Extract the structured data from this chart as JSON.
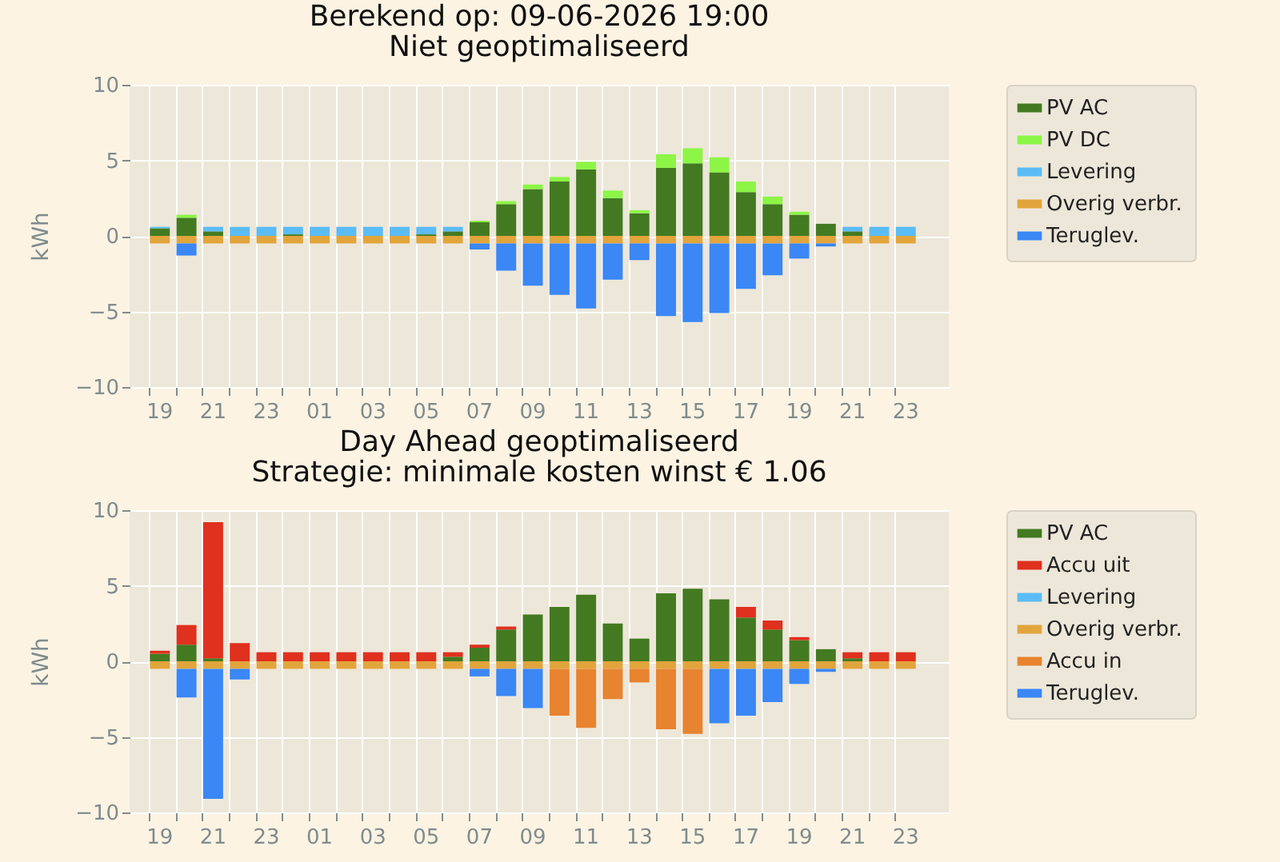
{
  "chart_data": [
    {
      "type": "bar",
      "title": "Berekend op: 09-06-2026 19:00",
      "subtitle": "Niet geoptimaliseerd",
      "ylabel": "kWh",
      "stacked": true,
      "grid": true,
      "legend": "right",
      "categories": [
        "19",
        null,
        "21",
        null,
        "23",
        null,
        "01",
        null,
        "03",
        null,
        "05",
        null,
        "07",
        null,
        "09",
        null,
        "11",
        null,
        "13",
        null,
        "15",
        null,
        "17",
        null,
        "19",
        null,
        "21",
        null,
        "23"
      ],
      "ylim": [
        -10,
        10
      ],
      "yticks": [
        -10,
        -5,
        0,
        5,
        10
      ],
      "series": [
        {
          "name": "PV AC",
          "color": "#437a21",
          "values": [
            0.5,
            1.2,
            0.3,
            0,
            0,
            0.1,
            0,
            0,
            0,
            0,
            0.1,
            0.3,
            0.9,
            2.1,
            3.1,
            3.6,
            4.4,
            2.5,
            1.5,
            4.5,
            4.8,
            4.2,
            2.9,
            2.1,
            1.4,
            0.8,
            0.3,
            0,
            0
          ]
        },
        {
          "name": "PV DC",
          "color": "#8cf545",
          "values": [
            0,
            0.2,
            0,
            0,
            0,
            0,
            0,
            0,
            0,
            0,
            0,
            0,
            0.1,
            0.2,
            0.3,
            0.3,
            0.5,
            0.5,
            0.2,
            0.9,
            1.0,
            1.0,
            0.7,
            0.5,
            0.2,
            0,
            0,
            0,
            0
          ]
        },
        {
          "name": "Levering",
          "color": "#5bbcf5",
          "values": [
            0.1,
            0,
            0.3,
            0.6,
            0.6,
            0.5,
            0.6,
            0.6,
            0.6,
            0.6,
            0.5,
            0.3,
            0,
            0,
            0,
            0,
            0,
            0,
            0,
            0,
            0,
            0,
            0,
            0,
            0,
            0,
            0.3,
            0.6,
            0.6
          ]
        },
        {
          "name": "Overig verbr.",
          "color": "#e2a53c",
          "values": [
            -0.5,
            -0.5,
            -0.5,
            -0.5,
            -0.5,
            -0.5,
            -0.5,
            -0.5,
            -0.5,
            -0.5,
            -0.5,
            -0.5,
            -0.5,
            -0.5,
            -0.5,
            -0.5,
            -0.5,
            -0.5,
            -0.5,
            -0.5,
            -0.5,
            -0.5,
            -0.5,
            -0.5,
            -0.5,
            -0.5,
            -0.5,
            -0.5,
            -0.5
          ]
        },
        {
          "name": "Teruglev.",
          "color": "#3a87f5",
          "values": [
            0,
            -0.8,
            0,
            0,
            0,
            0,
            0,
            0,
            0,
            0,
            0,
            0,
            -0.4,
            -1.8,
            -2.8,
            -3.4,
            -4.3,
            -2.4,
            -1.1,
            -4.8,
            -5.2,
            -4.6,
            -3.0,
            -2.1,
            -1.0,
            -0.2,
            0,
            0,
            0
          ]
        }
      ]
    },
    {
      "type": "bar",
      "title": "Day Ahead geoptimaliseerd",
      "subtitle": "Strategie: minimale kosten winst € 1.06",
      "ylabel": "kWh",
      "stacked": true,
      "grid": true,
      "legend": "right",
      "categories": [
        "19",
        null,
        "21",
        null,
        "23",
        null,
        "01",
        null,
        "03",
        null,
        "05",
        null,
        "07",
        null,
        "09",
        null,
        "11",
        null,
        "13",
        null,
        "15",
        null,
        "17",
        null,
        "19",
        null,
        "21",
        null,
        "23"
      ],
      "ylim": [
        -10,
        10
      ],
      "yticks": [
        -10,
        -5,
        0,
        5,
        10
      ],
      "series": [
        {
          "name": "PV AC",
          "color": "#437a21",
          "values": [
            0.5,
            1.1,
            0.2,
            0,
            0,
            0,
            0,
            0,
            0,
            0,
            0,
            0.3,
            0.9,
            2.1,
            3.1,
            3.6,
            4.4,
            2.5,
            1.5,
            4.5,
            4.8,
            4.1,
            2.9,
            2.1,
            1.4,
            0.8,
            0.2,
            0,
            0
          ]
        },
        {
          "name": "Accu uit",
          "color": "#e0301e",
          "values": [
            0.2,
            1.3,
            9.0,
            1.2,
            0.6,
            0.6,
            0.6,
            0.6,
            0.6,
            0.6,
            0.6,
            0.3,
            0.2,
            0.2,
            0,
            0,
            0,
            0,
            0,
            0,
            0,
            0,
            0.7,
            0.6,
            0.2,
            0,
            0.4,
            0.6,
            0.6
          ]
        },
        {
          "name": "Levering",
          "color": "#5bbcf5",
          "values": [
            0,
            0,
            0,
            0,
            0,
            0,
            0,
            0,
            0,
            0,
            0,
            0,
            0,
            0,
            0,
            0,
            0,
            0,
            0,
            0,
            0,
            0,
            0,
            0,
            0,
            0,
            0,
            0,
            0
          ]
        },
        {
          "name": "Overig verbr.",
          "color": "#e2a53c",
          "values": [
            -0.5,
            -0.5,
            -0.5,
            -0.5,
            -0.5,
            -0.5,
            -0.5,
            -0.5,
            -0.5,
            -0.5,
            -0.5,
            -0.5,
            -0.5,
            -0.5,
            -0.5,
            -0.5,
            -0.5,
            -0.5,
            -0.5,
            -0.5,
            -0.5,
            -0.5,
            -0.5,
            -0.5,
            -0.5,
            -0.5,
            -0.5,
            -0.5,
            -0.5
          ]
        },
        {
          "name": "Accu in",
          "color": "#e8832f",
          "values": [
            0,
            0,
            0,
            0,
            0,
            0,
            0,
            0,
            0,
            0,
            0,
            0,
            0,
            0,
            0,
            -3.1,
            -3.9,
            -2.0,
            -0.9,
            -4.0,
            -4.3,
            0,
            0,
            0,
            0,
            0,
            0,
            0,
            0
          ]
        },
        {
          "name": "Teruglev.",
          "color": "#3a87f5",
          "values": [
            0,
            -1.9,
            -8.6,
            -0.7,
            0,
            0,
            0,
            0,
            0,
            0,
            0,
            0,
            -0.5,
            -1.8,
            -2.6,
            0,
            0,
            0,
            0,
            0,
            0,
            -3.6,
            -3.1,
            -2.2,
            -1.0,
            -0.2,
            0,
            0,
            0
          ]
        }
      ]
    }
  ]
}
